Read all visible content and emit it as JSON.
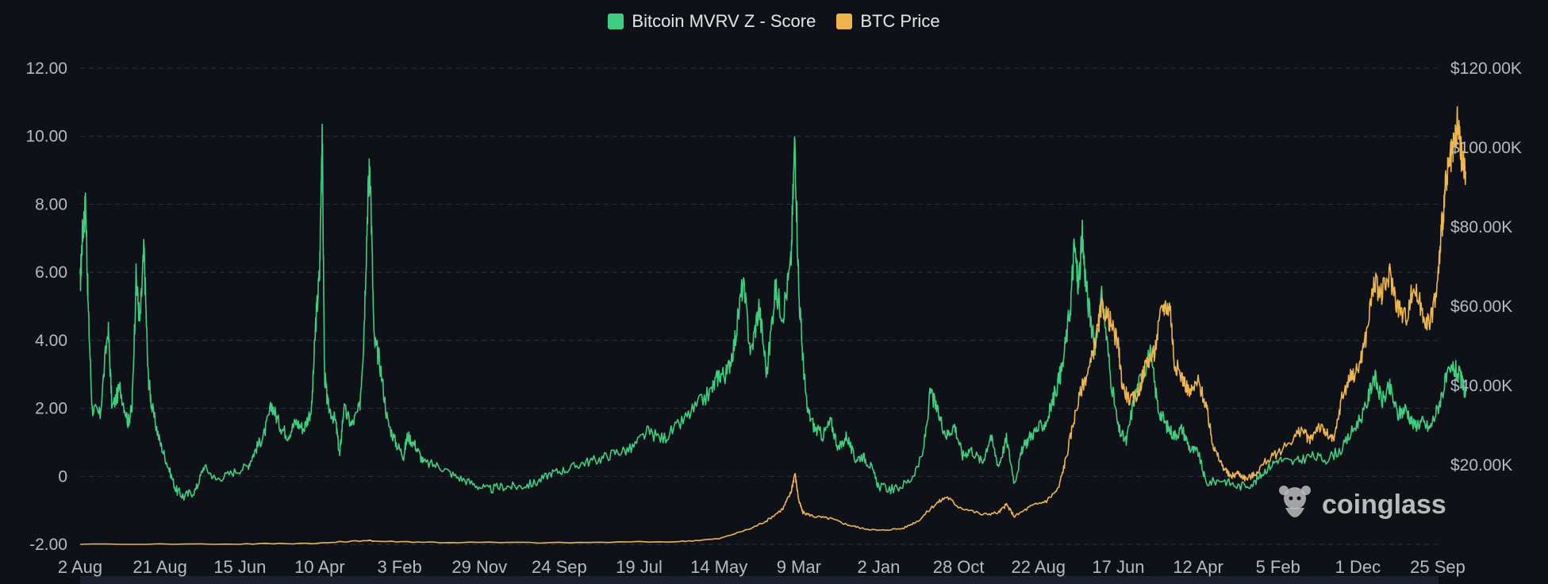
{
  "legend": {
    "mvrv_label": "Bitcoin MVRV Z - Score",
    "btc_label": "BTC Price"
  },
  "colors": {
    "background": "#0e1118",
    "mvrv": "#3ecf7e",
    "btc": "#f0b54a",
    "grid": "#2e333d",
    "axis_text": "#b5bac3"
  },
  "watermark": {
    "text": "coinglass",
    "icon": "coinglass-logo-icon"
  },
  "chart_data": {
    "type": "line",
    "x_tick_labels": [
      "2 Aug",
      "21 Aug",
      "15 Jun",
      "10 Apr",
      "3 Feb",
      "29 Nov",
      "24 Sep",
      "19 Jul",
      "14 May",
      "9 Mar",
      "2 Jan",
      "28 Oct",
      "22 Aug",
      "17 Jun",
      "12 Apr",
      "5 Feb",
      "1 Dec",
      "25 Sep"
    ],
    "x_range": [
      0,
      17
    ],
    "y_left": {
      "ticks": [
        "12.00",
        "10.00",
        "8.00",
        "6.00",
        "4.00",
        "2.00",
        "0",
        "-2.00"
      ],
      "range": [
        -2,
        12
      ]
    },
    "y_right": {
      "ticks": [
        "$120.00K",
        "$100.00K",
        "$80.00K",
        "$60.00K",
        "$40.00K",
        "$20.00K"
      ],
      "range": [
        0,
        120000
      ]
    },
    "grid": true,
    "legend_position": "top-center",
    "series": [
      {
        "name": "Bitcoin MVRV Z - Score",
        "axis": "left",
        "points": [
          [
            0,
            5.6
          ],
          [
            0.03,
            7.2
          ],
          [
            0.07,
            8.0
          ],
          [
            0.1,
            5.0
          ],
          [
            0.15,
            2.0
          ],
          [
            0.25,
            1.8
          ],
          [
            0.35,
            4.4
          ],
          [
            0.4,
            2.0
          ],
          [
            0.5,
            2.6
          ],
          [
            0.6,
            1.6
          ],
          [
            0.65,
            2.0
          ],
          [
            0.7,
            5.8
          ],
          [
            0.75,
            4.5
          ],
          [
            0.8,
            6.7
          ],
          [
            0.85,
            3.0
          ],
          [
            0.9,
            2.0
          ],
          [
            1.0,
            1.0
          ],
          [
            1.1,
            0.3
          ],
          [
            1.2,
            -0.4
          ],
          [
            1.3,
            -0.6
          ],
          [
            1.45,
            -0.4
          ],
          [
            1.55,
            0.3
          ],
          [
            1.7,
            -0.1
          ],
          [
            1.9,
            0.1
          ],
          [
            2.1,
            0.3
          ],
          [
            2.2,
            0.8
          ],
          [
            2.3,
            1.2
          ],
          [
            2.4,
            2.1
          ],
          [
            2.5,
            1.5
          ],
          [
            2.6,
            1.2
          ],
          [
            2.7,
            1.6
          ],
          [
            2.8,
            1.4
          ],
          [
            2.9,
            2.0
          ],
          [
            2.95,
            4.5
          ],
          [
            3.0,
            6.0
          ],
          [
            3.03,
            10.4
          ],
          [
            3.06,
            3.0
          ],
          [
            3.1,
            2.1
          ],
          [
            3.2,
            1.6
          ],
          [
            3.25,
            0.6
          ],
          [
            3.3,
            2.0
          ],
          [
            3.4,
            1.5
          ],
          [
            3.5,
            2.0
          ],
          [
            3.55,
            4.0
          ],
          [
            3.6,
            8.0
          ],
          [
            3.63,
            9.3
          ],
          [
            3.68,
            4.0
          ],
          [
            3.75,
            3.4
          ],
          [
            3.85,
            1.6
          ],
          [
            3.95,
            1.0
          ],
          [
            4.05,
            0.6
          ],
          [
            4.1,
            1.2
          ],
          [
            4.2,
            0.9
          ],
          [
            4.3,
            0.4
          ],
          [
            4.5,
            0.3
          ],
          [
            4.7,
            0.0
          ],
          [
            4.9,
            -0.2
          ],
          [
            5.1,
            -0.4
          ],
          [
            5.3,
            -0.3
          ],
          [
            5.5,
            -0.3
          ],
          [
            5.7,
            -0.2
          ],
          [
            5.9,
            0.1
          ],
          [
            6.1,
            0.2
          ],
          [
            6.3,
            0.4
          ],
          [
            6.5,
            0.5
          ],
          [
            6.7,
            0.7
          ],
          [
            6.9,
            0.8
          ],
          [
            7.1,
            1.3
          ],
          [
            7.3,
            1.1
          ],
          [
            7.5,
            1.5
          ],
          [
            7.7,
            2.0
          ],
          [
            7.9,
            2.5
          ],
          [
            8.0,
            3.0
          ],
          [
            8.1,
            3.0
          ],
          [
            8.2,
            4.0
          ],
          [
            8.3,
            5.7
          ],
          [
            8.4,
            3.6
          ],
          [
            8.5,
            5.0
          ],
          [
            8.6,
            3.0
          ],
          [
            8.7,
            5.5
          ],
          [
            8.8,
            4.8
          ],
          [
            8.9,
            6.2
          ],
          [
            8.95,
            10.0
          ],
          [
            9.0,
            5.4
          ],
          [
            9.05,
            3.5
          ],
          [
            9.1,
            2.0
          ],
          [
            9.2,
            1.4
          ],
          [
            9.3,
            1.2
          ],
          [
            9.4,
            1.6
          ],
          [
            9.5,
            0.8
          ],
          [
            9.6,
            1.2
          ],
          [
            9.7,
            0.5
          ],
          [
            9.8,
            0.6
          ],
          [
            9.9,
            0.3
          ],
          [
            10.0,
            -0.3
          ],
          [
            10.2,
            -0.4
          ],
          [
            10.4,
            -0.1
          ],
          [
            10.55,
            0.6
          ],
          [
            10.65,
            2.5
          ],
          [
            10.75,
            1.8
          ],
          [
            10.85,
            1.2
          ],
          [
            10.95,
            1.5
          ],
          [
            11.05,
            0.6
          ],
          [
            11.15,
            0.8
          ],
          [
            11.3,
            0.4
          ],
          [
            11.4,
            1.2
          ],
          [
            11.5,
            0.3
          ],
          [
            11.6,
            1.1
          ],
          [
            11.7,
            -0.2
          ],
          [
            11.8,
            0.8
          ],
          [
            11.9,
            1.2
          ],
          [
            12.0,
            1.4
          ],
          [
            12.1,
            1.6
          ],
          [
            12.2,
            2.4
          ],
          [
            12.3,
            3.2
          ],
          [
            12.4,
            5.0
          ],
          [
            12.45,
            6.8
          ],
          [
            12.5,
            5.6
          ],
          [
            12.55,
            7.0
          ],
          [
            12.6,
            5.5
          ],
          [
            12.7,
            3.8
          ],
          [
            12.8,
            5.3
          ],
          [
            12.9,
            3.0
          ],
          [
            13.0,
            1.4
          ],
          [
            13.1,
            1.0
          ],
          [
            13.2,
            2.3
          ],
          [
            13.3,
            3.0
          ],
          [
            13.4,
            3.6
          ],
          [
            13.5,
            2.0
          ],
          [
            13.6,
            1.5
          ],
          [
            13.7,
            1.2
          ],
          [
            13.8,
            1.4
          ],
          [
            13.9,
            0.8
          ],
          [
            14.0,
            0.7
          ],
          [
            14.1,
            -0.2
          ],
          [
            14.3,
            -0.1
          ],
          [
            14.5,
            -0.3
          ],
          [
            14.7,
            -0.2
          ],
          [
            14.85,
            0.2
          ],
          [
            15.0,
            0.5
          ],
          [
            15.2,
            0.4
          ],
          [
            15.4,
            0.6
          ],
          [
            15.6,
            0.5
          ],
          [
            15.8,
            0.8
          ],
          [
            15.95,
            1.4
          ],
          [
            16.1,
            2.0
          ],
          [
            16.2,
            3.0
          ],
          [
            16.3,
            2.2
          ],
          [
            16.4,
            2.6
          ],
          [
            16.5,
            1.8
          ],
          [
            16.6,
            2.0
          ],
          [
            16.7,
            1.5
          ],
          [
            16.8,
            1.6
          ],
          [
            16.9,
            1.4
          ],
          [
            17.0,
            2.0
          ],
          [
            17.1,
            2.8
          ],
          [
            17.2,
            3.2
          ],
          [
            17.28,
            2.9
          ],
          [
            17.35,
            2.5
          ]
        ]
      },
      {
        "name": "BTC Price",
        "axis": "right",
        "points": [
          [
            0,
            0
          ],
          [
            2,
            100
          ],
          [
            3,
            300
          ],
          [
            3.6,
            1000
          ],
          [
            3.7,
            800
          ],
          [
            4.5,
            500
          ],
          [
            6,
            400
          ],
          [
            7.5,
            700
          ],
          [
            8.0,
            1400
          ],
          [
            8.4,
            4000
          ],
          [
            8.6,
            6000
          ],
          [
            8.8,
            9000
          ],
          [
            8.9,
            13000
          ],
          [
            8.95,
            18000
          ],
          [
            9.0,
            11000
          ],
          [
            9.05,
            8000
          ],
          [
            9.2,
            7000
          ],
          [
            9.4,
            6500
          ],
          [
            9.6,
            5000
          ],
          [
            9.8,
            4000
          ],
          [
            10.0,
            3500
          ],
          [
            10.3,
            4000
          ],
          [
            10.5,
            6000
          ],
          [
            10.7,
            10000
          ],
          [
            10.85,
            12000
          ],
          [
            11.0,
            9500
          ],
          [
            11.3,
            7500
          ],
          [
            11.5,
            8000
          ],
          [
            11.6,
            10000
          ],
          [
            11.7,
            7000
          ],
          [
            11.9,
            9500
          ],
          [
            12.1,
            11000
          ],
          [
            12.25,
            14000
          ],
          [
            12.35,
            22000
          ],
          [
            12.45,
            32000
          ],
          [
            12.55,
            40000
          ],
          [
            12.65,
            45000
          ],
          [
            12.75,
            55000
          ],
          [
            12.8,
            60000
          ],
          [
            12.9,
            56000
          ],
          [
            13.0,
            50000
          ],
          [
            13.05,
            40000
          ],
          [
            13.15,
            36000
          ],
          [
            13.25,
            38000
          ],
          [
            13.35,
            46000
          ],
          [
            13.45,
            48000
          ],
          [
            13.55,
            60000
          ],
          [
            13.65,
            60000
          ],
          [
            13.7,
            46000
          ],
          [
            13.8,
            42000
          ],
          [
            13.9,
            38000
          ],
          [
            14.0,
            41000
          ],
          [
            14.1,
            35000
          ],
          [
            14.15,
            29000
          ],
          [
            14.2,
            24000
          ],
          [
            14.3,
            20000
          ],
          [
            14.4,
            17000
          ],
          [
            14.5,
            18000
          ],
          [
            14.6,
            16500
          ],
          [
            14.7,
            17500
          ],
          [
            14.85,
            21000
          ],
          [
            15.0,
            23000
          ],
          [
            15.2,
            27000
          ],
          [
            15.3,
            29000
          ],
          [
            15.4,
            26000
          ],
          [
            15.5,
            30000
          ],
          [
            15.6,
            28000
          ],
          [
            15.7,
            26000
          ],
          [
            15.8,
            37000
          ],
          [
            15.9,
            42000
          ],
          [
            16.0,
            44000
          ],
          [
            16.1,
            52000
          ],
          [
            16.2,
            66000
          ],
          [
            16.3,
            63000
          ],
          [
            16.4,
            68000
          ],
          [
            16.5,
            60000
          ],
          [
            16.6,
            57000
          ],
          [
            16.7,
            65000
          ],
          [
            16.8,
            59000
          ],
          [
            16.9,
            55000
          ],
          [
            17.0,
            66000
          ],
          [
            17.05,
            80000
          ],
          [
            17.1,
            90000
          ],
          [
            17.15,
            96000
          ],
          [
            17.2,
            99000
          ],
          [
            17.25,
            106000
          ],
          [
            17.3,
            97000
          ],
          [
            17.35,
            94000
          ]
        ]
      }
    ]
  }
}
